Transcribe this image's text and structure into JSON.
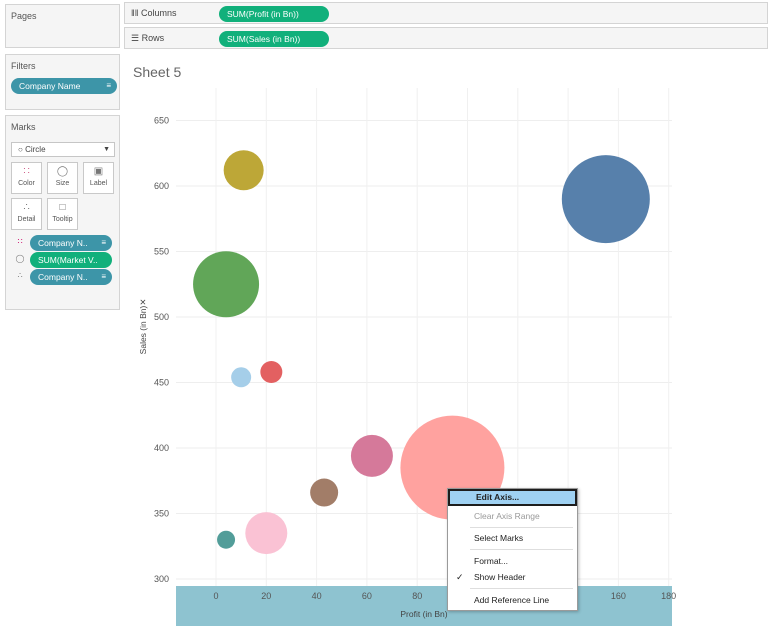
{
  "panels": {
    "pages_title": "Pages",
    "filters_title": "Filters",
    "filter_pill": "Company Name",
    "marks_title": "Marks",
    "mark_type": "Circle",
    "buttons": {
      "color": "Color",
      "size": "Size",
      "label": "Label",
      "detail": "Detail",
      "tooltip": "Tooltip"
    },
    "mark_pills": [
      "Company N..",
      "SUM(Market V..",
      "Company N.."
    ]
  },
  "shelves": {
    "columns_label": "Columns",
    "columns_pill": "SUM(Profit (in Bn))",
    "rows_label": "Rows",
    "rows_pill": "SUM(Sales (in Bn))"
  },
  "sheet": {
    "title": "Sheet 5"
  },
  "colors": {
    "pill_blue": "#3d95a8",
    "pill_green": "#11b07b",
    "x_axis_highlight": "#8ec3d0",
    "menu_highlight": "#9fd1f2"
  },
  "chart_data": {
    "type": "scatter",
    "xlabel": "Profit (in Bn)",
    "ylabel": "Sales (in Bn)",
    "xlim": [
      -15,
      183
    ],
    "ylim": [
      288,
      668
    ],
    "x_ticks": [
      0,
      20,
      40,
      60,
      80,
      160,
      180
    ],
    "y_ticks": [
      300,
      350,
      400,
      450,
      500,
      550,
      600,
      650
    ],
    "grid": true,
    "points": [
      {
        "x": 155,
        "y": 590,
        "size": 44,
        "color": "#4e79a7"
      },
      {
        "x": 11,
        "y": 612,
        "size": 20,
        "color": "#b9a22c"
      },
      {
        "x": 4,
        "y": 525,
        "size": 33,
        "color": "#59a14f"
      },
      {
        "x": 10,
        "y": 454,
        "size": 10,
        "color": "#a0cbe8"
      },
      {
        "x": 22,
        "y": 458,
        "size": 11,
        "color": "#e15759"
      },
      {
        "x": 94,
        "y": 385,
        "size": 52,
        "color": "#ff9d9a"
      },
      {
        "x": 62,
        "y": 394,
        "size": 21,
        "color": "#d37295"
      },
      {
        "x": 43,
        "y": 366,
        "size": 14,
        "color": "#9d7660"
      },
      {
        "x": 20,
        "y": 335,
        "size": 21,
        "color": "#fabfd2"
      },
      {
        "x": 4,
        "y": 330,
        "size": 9,
        "color": "#499894"
      }
    ]
  },
  "context_menu": {
    "items": [
      "Edit Axis...",
      "Clear Axis Range",
      "Select Marks",
      "Format...",
      "Show Header",
      "Add Reference Line"
    ],
    "checked": "Show Header"
  }
}
